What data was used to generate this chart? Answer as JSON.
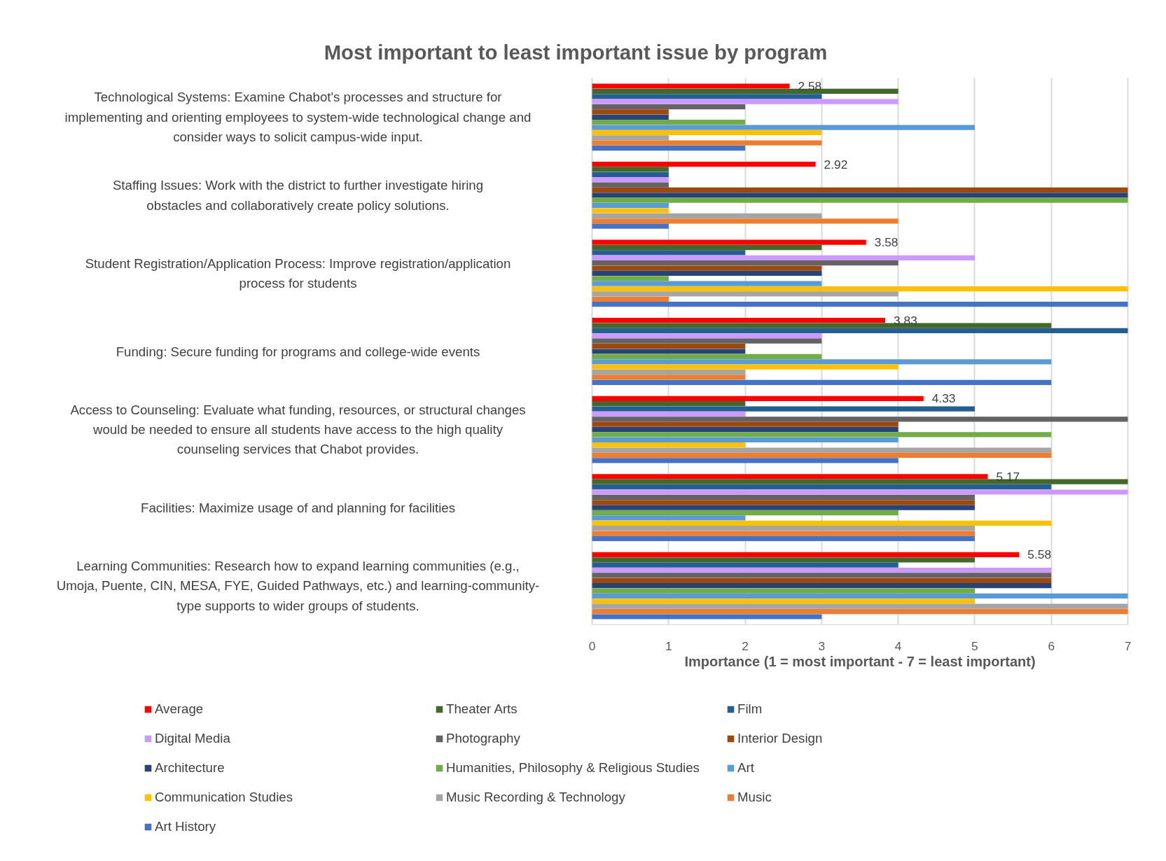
{
  "chart_data": {
    "type": "bar",
    "orientation": "horizontal",
    "title": "Most important to least important issue by program",
    "xlabel": "Importance (1 = most important - 7 = least important)",
    "categories": [
      "Technological Systems: Examine Chabot's processes and structure for implementing and orienting employees to system-wide technological change and consider ways to solicit campus-wide input.",
      "Staffing Issues: Work with the district to further investigate hiring obstacles and collaboratively create policy solutions.",
      "Student Registration/Application Process: Improve registration/application process for students",
      "Funding: Secure funding for programs and college-wide events",
      "Access to Counseling: Evaluate what funding, resources, or structural changes would be needed to ensure all students have access to the high quality counseling services that Chabot provides.",
      "Facilities: Maximize usage of and planning for facilities",
      "Learning Communities: Research how to expand learning communities (e.g., Umoja, Puente, CIN, MESA, FYE, Guided Pathways, etc.) and learning-community-type supports to wider groups of students."
    ],
    "series": [
      {
        "name": "Average",
        "color": "#ff0000",
        "values": [
          2.58,
          2.92,
          3.58,
          3.83,
          4.33,
          5.17,
          5.58
        ],
        "value_labels": [
          "2.58",
          "2.92",
          "3.58",
          "3.83",
          "4.33",
          "5.17",
          "5.58"
        ]
      },
      {
        "name": "Theater Arts",
        "color": "#43682b",
        "values": [
          4,
          1,
          3,
          6,
          2,
          7,
          5
        ]
      },
      {
        "name": "Film",
        "color": "#255e91",
        "values": [
          3,
          1,
          2,
          7,
          5,
          6,
          4
        ]
      },
      {
        "name": "Digital Media",
        "color": "#cc99ff",
        "values": [
          4,
          1,
          5,
          3,
          2,
          7,
          6
        ]
      },
      {
        "name": "Photography",
        "color": "#636363",
        "values": [
          2,
          1,
          4,
          3,
          7,
          5,
          6
        ]
      },
      {
        "name": "Interior Design",
        "color": "#9e480e",
        "values": [
          1,
          7,
          3,
          2,
          4,
          5,
          6
        ]
      },
      {
        "name": "Architecture",
        "color": "#264478",
        "values": [
          1,
          7,
          3,
          2,
          4,
          5,
          6
        ]
      },
      {
        "name": "Humanities, Philosophy & Religious Studies",
        "color": "#70ad47",
        "values": [
          2,
          7,
          1,
          3,
          6,
          4,
          5
        ]
      },
      {
        "name": "Art",
        "color": "#5b9bd5",
        "values": [
          5,
          1,
          3,
          6,
          4,
          2,
          7
        ]
      },
      {
        "name": "Communication Studies",
        "color": "#ffc000",
        "values": [
          3,
          1,
          7,
          4,
          2,
          6,
          5
        ]
      },
      {
        "name": "Music Recording & Technology",
        "color": "#a5a5a5",
        "values": [
          1,
          3,
          4,
          2,
          6,
          5,
          7
        ]
      },
      {
        "name": "Music",
        "color": "#ed7d31",
        "values": [
          3,
          4,
          1,
          2,
          6,
          5,
          7
        ]
      },
      {
        "name": "Art History",
        "color": "#4472c4",
        "values": [
          2,
          1,
          7,
          6,
          4,
          5,
          3
        ]
      }
    ],
    "xlim": [
      0,
      7
    ],
    "xticks": [
      0,
      1,
      2,
      3,
      4,
      5,
      6,
      7
    ],
    "grid": "x",
    "legend": "bottom"
  }
}
